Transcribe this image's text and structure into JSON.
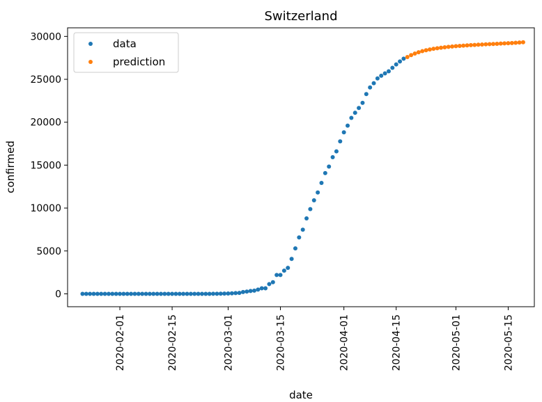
{
  "chart_data": {
    "type": "scatter",
    "title": "Switzerland",
    "xlabel": "date",
    "ylabel": "confirmed",
    "xlim": [
      "2020-01-18",
      "2020-05-22"
    ],
    "ylim": [
      -1500,
      31000
    ],
    "x_ticks": [
      "2020-02-01",
      "2020-02-15",
      "2020-03-01",
      "2020-03-15",
      "2020-04-01",
      "2020-04-15",
      "2020-05-01",
      "2020-05-15"
    ],
    "y_ticks": [
      0,
      5000,
      10000,
      15000,
      20000,
      25000,
      30000
    ],
    "y_tick_labels": [
      "0",
      "5000",
      "10000",
      "15000",
      "20000",
      "25000",
      "30000"
    ],
    "legend": {
      "position": "top-left",
      "entries": [
        "data",
        "prediction"
      ]
    },
    "grid": false,
    "series": [
      {
        "name": "data",
        "color": "#1f77b4",
        "start_date": "2020-01-22",
        "values": [
          0,
          0,
          0,
          0,
          0,
          0,
          0,
          0,
          0,
          0,
          0,
          0,
          0,
          0,
          0,
          0,
          0,
          0,
          0,
          0,
          0,
          0,
          0,
          0,
          0,
          0,
          0,
          0,
          0,
          0,
          0,
          0,
          0,
          0,
          1,
          8,
          8,
          18,
          27,
          42,
          56,
          90,
          114,
          214,
          268,
          337,
          374,
          491,
          652,
          652,
          1139,
          1359,
          2200,
          2200,
          2700,
          3028,
          4075,
          5294,
          6575,
          7474,
          8795,
          9877,
          10897,
          11811,
          12928,
          14076,
          14829,
          15922,
          16605,
          17768,
          18827,
          19606,
          20505,
          21100,
          21657,
          22253,
          23280,
          24051,
          24551,
          25107,
          25415,
          25688,
          25936,
          26336,
          26732,
          27078,
          27404
        ]
      },
      {
        "name": "prediction",
        "color": "#ff7f0e",
        "start_date": "2020-04-18",
        "values": [
          27600,
          27820,
          28000,
          28150,
          28280,
          28390,
          28480,
          28560,
          28620,
          28680,
          28730,
          28780,
          28820,
          28860,
          28890,
          28920,
          28950,
          28980,
          29000,
          29030,
          29050,
          29080,
          29100,
          29120,
          29140,
          29170,
          29190,
          29210,
          29230,
          29260,
          29290,
          29320
        ]
      }
    ]
  }
}
